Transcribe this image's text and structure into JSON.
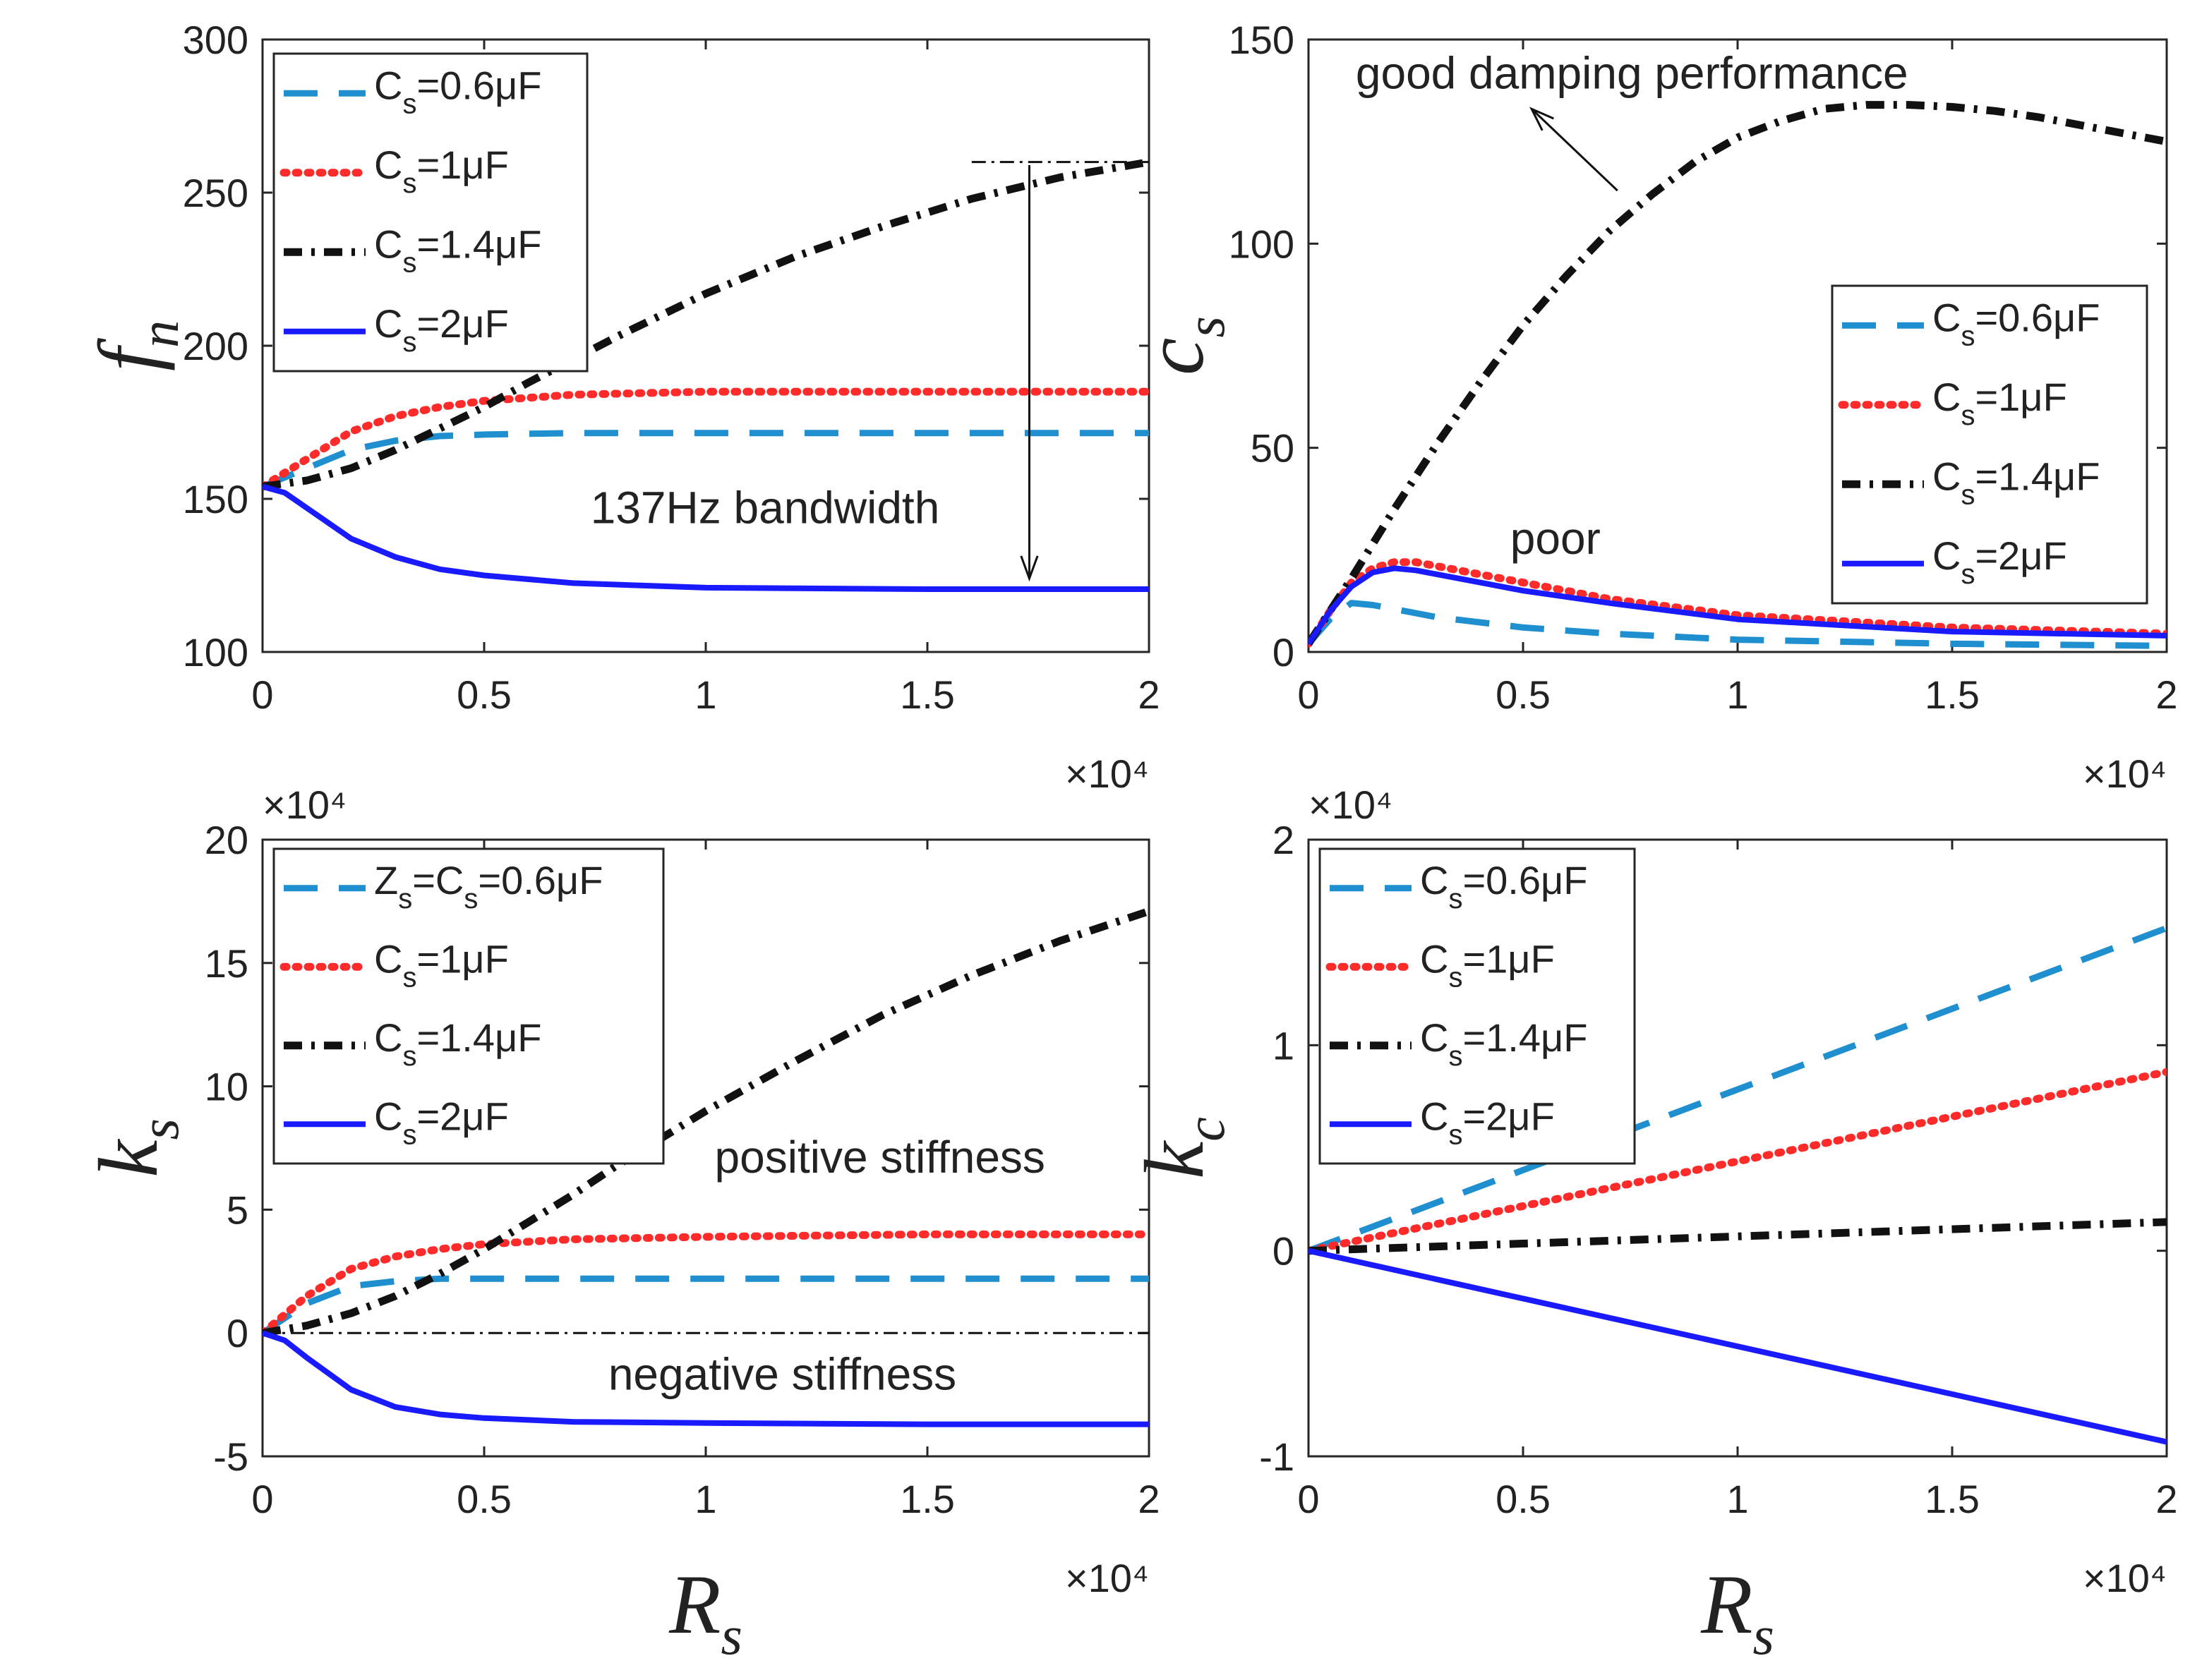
{
  "chart_data": [
    {
      "id": "fn",
      "type": "line",
      "ylabel_main": "f",
      "ylabel_sub": "n",
      "xlabel_main": "",
      "xlabel_sub": "",
      "xlim": [
        0,
        20000
      ],
      "ylim": [
        100,
        300
      ],
      "x_ticks": [
        0,
        5000,
        10000,
        15000,
        20000
      ],
      "x_tick_labels": [
        "0",
        "0.5",
        "1",
        "1.5",
        "2"
      ],
      "y_ticks": [
        100,
        150,
        200,
        250,
        300
      ],
      "y_tick_labels": [
        "100",
        "150",
        "200",
        "250",
        "300"
      ],
      "x_exponent": "×10⁴",
      "y_exponent": "",
      "legend_position": "top-left",
      "series": [
        {
          "name": "Cs=0.6μF",
          "color": "#1f8fcf",
          "style": "dashed",
          "legend": {
            "main": "C",
            "sub": "s",
            "rest": "=0.6μF"
          },
          "x": [
            0,
            1000,
            2000,
            3000,
            4000,
            5000,
            7000,
            10000,
            15000,
            20000
          ],
          "y": [
            154,
            160,
            166,
            169,
            170.5,
            171,
            171.5,
            171.5,
            171.5,
            171.5
          ]
        },
        {
          "name": "Cs=1μF",
          "color": "#ff2a2a",
          "style": "dotted",
          "legend": {
            "main": "C",
            "sub": "s",
            "rest": "=1μF"
          },
          "x": [
            0,
            1000,
            2000,
            3000,
            4000,
            5000,
            7000,
            10000,
            15000,
            20000
          ],
          "y": [
            154,
            163,
            172,
            177,
            180,
            182,
            184,
            185,
            185,
            185
          ]
        },
        {
          "name": "Cs=1.4μF",
          "color": "#111111",
          "style": "dashdot",
          "legend": {
            "main": "C",
            "sub": "s",
            "rest": "=1.4μF"
          },
          "x": [
            0,
            1000,
            2000,
            3000,
            4000,
            5000,
            6000,
            8000,
            10000,
            12000,
            14000,
            16000,
            18000,
            20000
          ],
          "y": [
            154,
            156,
            160,
            166,
            173,
            180,
            188,
            203,
            217,
            229,
            239,
            248,
            255,
            260
          ]
        },
        {
          "name": "Cs=2μF",
          "color": "#1a1aff",
          "style": "solid",
          "legend": {
            "main": "C",
            "sub": "s",
            "rest": "=2μF"
          },
          "x": [
            0,
            500,
            1000,
            2000,
            3000,
            4000,
            5000,
            7000,
            10000,
            15000,
            20000
          ],
          "y": [
            154,
            152,
            147,
            137,
            131,
            127,
            125,
            122.5,
            121,
            120.5,
            120.5
          ]
        }
      ],
      "annotations": [
        {
          "text": "137Hz bandwidth",
          "x": 7400,
          "y": 142
        },
        {
          "type": "arrow",
          "x1": 17300,
          "y1": 259,
          "x2": 17300,
          "y2": 124
        },
        {
          "type": "refline",
          "x1": 16000,
          "y1": 260,
          "x2": 20000,
          "y2": 260
        }
      ]
    },
    {
      "id": "cs",
      "type": "line",
      "ylabel_main": "c",
      "ylabel_sub": "s",
      "xlabel_main": "",
      "xlabel_sub": "",
      "xlim": [
        0,
        20000
      ],
      "ylim": [
        0,
        150
      ],
      "x_ticks": [
        0,
        5000,
        10000,
        15000,
        20000
      ],
      "x_tick_labels": [
        "0",
        "0.5",
        "1",
        "1.5",
        "2"
      ],
      "y_ticks": [
        0,
        50,
        100,
        150
      ],
      "y_tick_labels": [
        "0",
        "50",
        "100",
        "150"
      ],
      "x_exponent": "×10⁴",
      "y_exponent": "",
      "legend_position": "center-right",
      "series": [
        {
          "name": "Cs=0.6μF",
          "color": "#1f8fcf",
          "style": "dashed",
          "legend": {
            "main": "C",
            "sub": "s",
            "rest": "=0.6μF"
          },
          "x": [
            0,
            500,
            1000,
            1500,
            2000,
            3000,
            5000,
            7000,
            10000,
            15000,
            20000
          ],
          "y": [
            2,
            8,
            12,
            11.5,
            10.5,
            8.5,
            6,
            4.5,
            3,
            2,
            1.5
          ]
        },
        {
          "name": "Cs=1μF",
          "color": "#ff2a2a",
          "style": "dotted",
          "legend": {
            "main": "C",
            "sub": "s",
            "rest": "=1μF"
          },
          "x": [
            0,
            500,
            1000,
            1500,
            2000,
            2500,
            3000,
            4000,
            5000,
            7000,
            10000,
            15000,
            20000
          ],
          "y": [
            2,
            10,
            17,
            20.5,
            22,
            22,
            21,
            19,
            17,
            13,
            9,
            6,
            4.5
          ]
        },
        {
          "name": "Cs=1.4μF",
          "color": "#111111",
          "style": "dashdot",
          "legend": {
            "main": "C",
            "sub": "s",
            "rest": "=1.4μF"
          },
          "x": [
            0,
            1000,
            2000,
            3000,
            4000,
            5000,
            6000,
            7000,
            8000,
            9000,
            10000,
            11000,
            12000,
            13000,
            14000,
            15000,
            16000,
            17000,
            18000,
            19000,
            20000
          ],
          "y": [
            2,
            18,
            35,
            51,
            66,
            80,
            92,
            103,
            112,
            120,
            126,
            130,
            133,
            134,
            134,
            133.5,
            132.5,
            131,
            129,
            127,
            125
          ]
        },
        {
          "name": "Cs=2μF",
          "color": "#1a1aff",
          "style": "solid",
          "legend": {
            "main": "C",
            "sub": "s",
            "rest": "=2μF"
          },
          "x": [
            0,
            500,
            1000,
            1500,
            2000,
            2500,
            3000,
            4000,
            5000,
            7000,
            10000,
            15000,
            20000
          ],
          "y": [
            2,
            10,
            16,
            19.5,
            20.5,
            20,
            19,
            17,
            15,
            12,
            8,
            5,
            4
          ]
        }
      ],
      "annotations": [
        {
          "text": "good damping performance",
          "x": 1100,
          "y": 138
        },
        {
          "type": "arrow",
          "x1": 7200,
          "y1": 113,
          "x2": 5200,
          "y2": 133
        },
        {
          "text": "poor",
          "x": 4700,
          "y": 24
        }
      ]
    },
    {
      "id": "ks",
      "type": "line",
      "ylabel_main": "k",
      "ylabel_sub": "s",
      "xlabel_main": "R",
      "xlabel_sub": "s",
      "xlim": [
        0,
        20000
      ],
      "ylim": [
        -5,
        20
      ],
      "x_ticks": [
        0,
        5000,
        10000,
        15000,
        20000
      ],
      "x_tick_labels": [
        "0",
        "0.5",
        "1",
        "1.5",
        "2"
      ],
      "y_ticks": [
        -5,
        0,
        5,
        10,
        15,
        20
      ],
      "y_tick_labels": [
        "-5",
        "0",
        "5",
        "10",
        "15",
        "20"
      ],
      "x_exponent": "×10⁴",
      "y_exponent": "×10⁴",
      "legend_position": "top-left",
      "series": [
        {
          "name": "Zs=Cs=0.6μF",
          "color": "#1f8fcf",
          "style": "dashed",
          "legend": {
            "main": "Z",
            "sub": "s",
            "rest": "=C",
            "sub2": "s",
            "rest2": "=0.6μF"
          },
          "x": [
            0,
            1000,
            2000,
            3000,
            4000,
            5000,
            7000,
            10000,
            15000,
            20000
          ],
          "y": [
            0,
            1.2,
            1.9,
            2.1,
            2.2,
            2.2,
            2.2,
            2.2,
            2.2,
            2.2
          ]
        },
        {
          "name": "Cs=1μF",
          "color": "#ff2a2a",
          "style": "dotted",
          "legend": {
            "main": "C",
            "sub": "s",
            "rest": "=1μF"
          },
          "x": [
            0,
            1000,
            2000,
            3000,
            4000,
            5000,
            7000,
            10000,
            15000,
            20000
          ],
          "y": [
            0,
            1.5,
            2.6,
            3.1,
            3.4,
            3.6,
            3.8,
            3.9,
            4,
            4
          ]
        },
        {
          "name": "Cs=1.4μF",
          "color": "#111111",
          "style": "dashdot",
          "legend": {
            "main": "C",
            "sub": "s",
            "rest": "=1.4μF"
          },
          "x": [
            0,
            1000,
            2000,
            3000,
            4000,
            5000,
            6000,
            7000,
            8000,
            9000,
            10000,
            12000,
            14000,
            16000,
            18000,
            20000
          ],
          "y": [
            0,
            0.3,
            0.8,
            1.5,
            2.4,
            3.4,
            4.5,
            5.6,
            6.8,
            7.9,
            9,
            11,
            12.9,
            14.5,
            15.9,
            17.1
          ]
        },
        {
          "name": "Cs=2μF",
          "color": "#1a1aff",
          "style": "solid",
          "legend": {
            "main": "C",
            "sub": "s",
            "rest": "=2μF"
          },
          "x": [
            0,
            500,
            1000,
            2000,
            3000,
            4000,
            5000,
            7000,
            10000,
            15000,
            20000
          ],
          "y": [
            0,
            -0.3,
            -1,
            -2.3,
            -3,
            -3.3,
            -3.45,
            -3.6,
            -3.65,
            -3.7,
            -3.7
          ]
        }
      ],
      "annotations": [
        {
          "text": "positive stiffness",
          "x": 10200,
          "y": 6.5
        },
        {
          "text": "negative stiffness",
          "x": 7800,
          "y": -2.3
        },
        {
          "type": "refline",
          "x1": 0,
          "y1": 0,
          "x2": 20000,
          "y2": 0
        }
      ]
    },
    {
      "id": "kc",
      "type": "line",
      "ylabel_main": "k",
      "ylabel_sub": "c",
      "xlabel_main": "R",
      "xlabel_sub": "s",
      "xlim": [
        0,
        20000
      ],
      "ylim": [
        -1,
        2
      ],
      "x_ticks": [
        0,
        5000,
        10000,
        15000,
        20000
      ],
      "x_tick_labels": [
        "0",
        "0.5",
        "1",
        "1.5",
        "2"
      ],
      "y_ticks": [
        -1,
        0,
        1,
        2
      ],
      "y_tick_labels": [
        "-1",
        "0",
        "1",
        "2"
      ],
      "x_exponent": "×10⁴",
      "y_exponent": "×10⁴",
      "legend_position": "top-left",
      "series": [
        {
          "name": "Cs=0.6μF",
          "color": "#1f8fcf",
          "style": "dashed",
          "legend": {
            "main": "C",
            "sub": "s",
            "rest": "=0.6μF"
          },
          "x": [
            0,
            20000
          ],
          "y": [
            0,
            1.57
          ]
        },
        {
          "name": "Cs=1μF",
          "color": "#ff2a2a",
          "style": "dotted",
          "legend": {
            "main": "C",
            "sub": "s",
            "rest": "=1μF"
          },
          "x": [
            0,
            20000
          ],
          "y": [
            0,
            0.87
          ]
        },
        {
          "name": "Cs=1.4μF",
          "color": "#111111",
          "style": "dashdot",
          "legend": {
            "main": "C",
            "sub": "s",
            "rest": "=1.4μF"
          },
          "x": [
            0,
            20000
          ],
          "y": [
            0,
            0.14
          ]
        },
        {
          "name": "Cs=2μF",
          "color": "#1a1aff",
          "style": "solid",
          "legend": {
            "main": "C",
            "sub": "s",
            "rest": "=2μF"
          },
          "x": [
            0,
            20000
          ],
          "y": [
            0,
            -0.93
          ]
        }
      ],
      "annotations": []
    }
  ]
}
